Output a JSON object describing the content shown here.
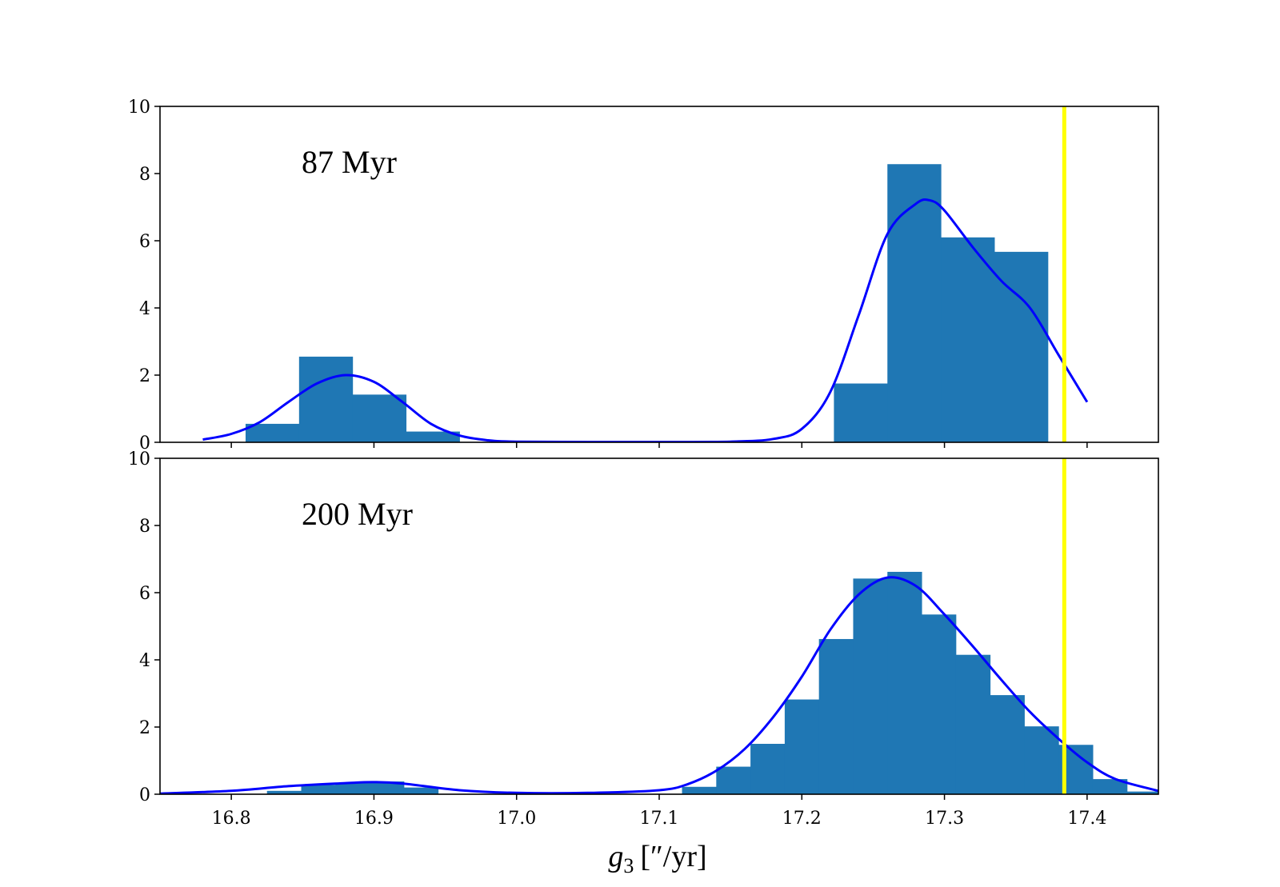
{
  "colors": {
    "bar": "#1f77b4",
    "kde": "#0000ff",
    "vline": "#ffff00",
    "axis": "#000000"
  },
  "chart_data": {
    "type": "bar",
    "xlabel": {
      "symbol": "g",
      "subscript": "3",
      "units": "[″/yr]"
    },
    "xlim": [
      16.75,
      17.45
    ],
    "xticks": [
      "16.8",
      "16.9",
      "17.0",
      "17.1",
      "17.2",
      "17.3",
      "17.4"
    ],
    "vline_x": 17.384,
    "panels": [
      {
        "label": "87 Myr",
        "ylim": [
          0,
          10
        ],
        "yticks": [
          "0",
          "2",
          "4",
          "6",
          "8",
          "10"
        ],
        "histogram": {
          "bins": [
            {
              "x0": 16.81,
              "x1": 16.8475,
              "height": 0.55
            },
            {
              "x0": 16.8475,
              "x1": 16.885,
              "height": 2.55
            },
            {
              "x0": 16.885,
              "x1": 16.9225,
              "height": 1.42
            },
            {
              "x0": 16.9225,
              "x1": 16.96,
              "height": 0.32
            },
            {
              "x0": 17.2225,
              "x1": 17.26,
              "height": 1.75
            },
            {
              "x0": 17.26,
              "x1": 17.2975,
              "height": 8.28
            },
            {
              "x0": 17.2975,
              "x1": 17.335,
              "height": 6.1
            },
            {
              "x0": 17.335,
              "x1": 17.3725,
              "height": 5.67
            }
          ]
        },
        "kde": {
          "x": [
            16.78,
            16.8,
            16.82,
            16.84,
            16.86,
            16.88,
            16.9,
            16.92,
            16.94,
            16.96,
            16.98,
            17.0,
            17.05,
            17.1,
            17.15,
            17.18,
            17.2,
            17.22,
            17.24,
            17.26,
            17.28,
            17.29,
            17.3,
            17.32,
            17.34,
            17.36,
            17.38,
            17.4
          ],
          "y": [
            0.08,
            0.25,
            0.6,
            1.2,
            1.75,
            2.0,
            1.8,
            1.2,
            0.55,
            0.2,
            0.06,
            0.02,
            0.01,
            0.01,
            0.02,
            0.1,
            0.4,
            1.5,
            3.8,
            6.2,
            7.1,
            7.2,
            6.9,
            5.8,
            4.8,
            4.0,
            2.6,
            1.2
          ]
        }
      },
      {
        "label": "200 Myr",
        "ylim": [
          0,
          10
        ],
        "yticks": [
          "0",
          "2",
          "4",
          "6",
          "8",
          "10"
        ],
        "histogram": {
          "bins": [
            {
              "x0": 16.825,
              "x1": 16.849,
              "height": 0.1
            },
            {
              "x0": 16.849,
              "x1": 16.873,
              "height": 0.28
            },
            {
              "x0": 16.873,
              "x1": 16.897,
              "height": 0.33
            },
            {
              "x0": 16.897,
              "x1": 16.921,
              "height": 0.38
            },
            {
              "x0": 16.921,
              "x1": 16.945,
              "height": 0.2
            },
            {
              "x0": 17.116,
              "x1": 17.14,
              "height": 0.22
            },
            {
              "x0": 17.14,
              "x1": 17.164,
              "height": 0.82
            },
            {
              "x0": 17.164,
              "x1": 17.188,
              "height": 1.5
            },
            {
              "x0": 17.188,
              "x1": 17.212,
              "height": 2.82
            },
            {
              "x0": 17.212,
              "x1": 17.236,
              "height": 4.62
            },
            {
              "x0": 17.236,
              "x1": 17.26,
              "height": 6.42
            },
            {
              "x0": 17.26,
              "x1": 17.284,
              "height": 6.62
            },
            {
              "x0": 17.284,
              "x1": 17.308,
              "height": 5.35
            },
            {
              "x0": 17.308,
              "x1": 17.332,
              "height": 4.15
            },
            {
              "x0": 17.332,
              "x1": 17.356,
              "height": 2.95
            },
            {
              "x0": 17.356,
              "x1": 17.38,
              "height": 2.02
            },
            {
              "x0": 17.38,
              "x1": 17.404,
              "height": 1.47
            },
            {
              "x0": 17.404,
              "x1": 17.428,
              "height": 0.45
            },
            {
              "x0": 17.428,
              "x1": 17.452,
              "height": 0.08
            }
          ]
        },
        "kde": {
          "x": [
            16.75,
            16.8,
            16.84,
            16.88,
            16.9,
            16.92,
            16.96,
            17.0,
            17.05,
            17.1,
            17.12,
            17.14,
            17.16,
            17.18,
            17.2,
            17.22,
            17.24,
            17.26,
            17.28,
            17.3,
            17.32,
            17.34,
            17.36,
            17.38,
            17.4,
            17.42,
            17.45
          ],
          "y": [
            0.02,
            0.1,
            0.24,
            0.33,
            0.36,
            0.32,
            0.12,
            0.04,
            0.04,
            0.12,
            0.3,
            0.7,
            1.35,
            2.3,
            3.5,
            4.9,
            5.95,
            6.45,
            6.2,
            5.35,
            4.4,
            3.4,
            2.45,
            1.65,
            0.95,
            0.45,
            0.1
          ]
        }
      }
    ]
  }
}
